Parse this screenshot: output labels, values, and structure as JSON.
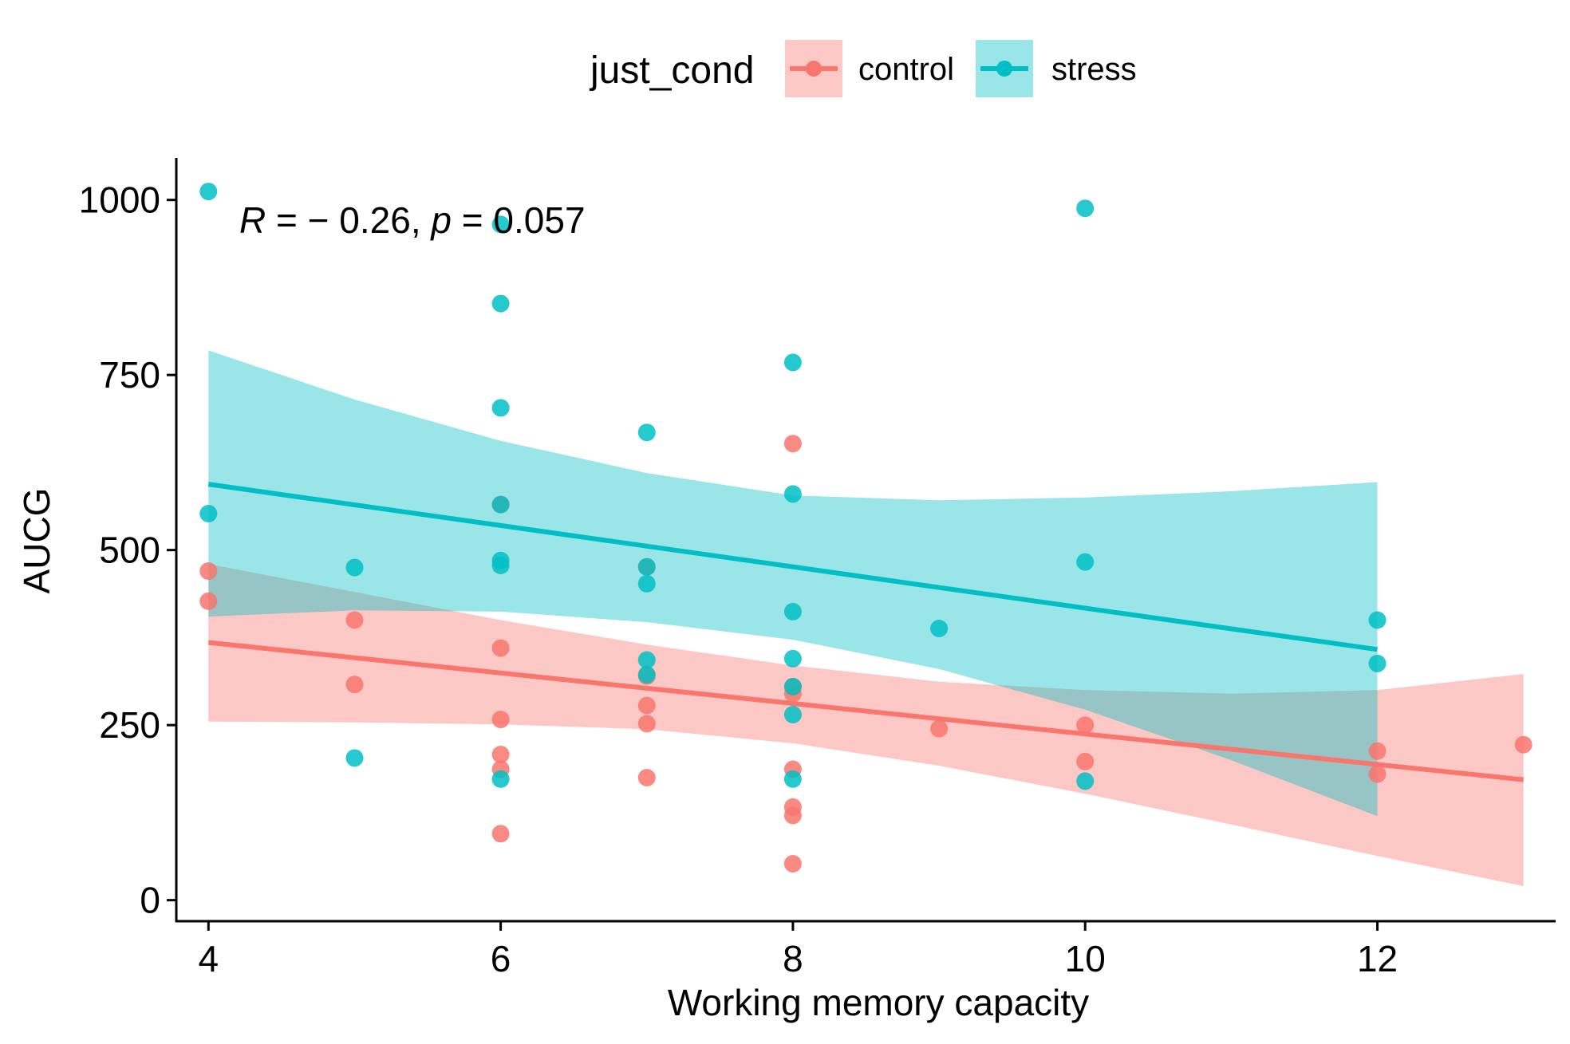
{
  "chart_data": {
    "type": "scatter",
    "xlabel": "Working memory capacity",
    "ylabel": "AUCG",
    "xlim": [
      3.78,
      13.22
    ],
    "ylim": [
      -30,
      1060
    ],
    "x_ticks": [
      4,
      6,
      8,
      10,
      12
    ],
    "y_ticks": [
      0,
      250,
      500,
      750,
      1000
    ],
    "grid": false,
    "legend": {
      "title": "just_cond",
      "position": "top"
    },
    "annotation": {
      "parts": [
        "R",
        " = − 0.26, ",
        "p",
        " = 0.057"
      ]
    },
    "colors": {
      "control": "#F8766D",
      "stress": "#00BFC4"
    },
    "series": [
      {
        "name": "control",
        "points": [
          [
            4,
            470
          ],
          [
            4,
            427
          ],
          [
            5,
            400
          ],
          [
            5,
            308
          ],
          [
            6,
            565
          ],
          [
            6,
            360
          ],
          [
            6,
            258
          ],
          [
            6,
            208
          ],
          [
            6,
            187
          ],
          [
            6,
            95
          ],
          [
            7,
            476
          ],
          [
            7,
            320
          ],
          [
            7,
            278
          ],
          [
            7,
            252
          ],
          [
            7,
            175
          ],
          [
            8,
            652
          ],
          [
            8,
            305
          ],
          [
            8,
            295
          ],
          [
            8,
            187
          ],
          [
            8,
            133
          ],
          [
            8,
            121
          ],
          [
            8,
            52
          ],
          [
            9,
            245
          ],
          [
            10,
            250
          ],
          [
            10,
            198
          ],
          [
            12,
            213
          ],
          [
            12,
            180
          ],
          [
            13,
            222
          ]
        ],
        "fit": {
          "x": [
            4,
            13
          ],
          "y": [
            368,
            172
          ]
        },
        "ci": {
          "x": [
            4,
            5,
            6,
            7,
            8,
            9,
            10,
            11,
            12,
            13
          ],
          "lower": [
            255,
            254,
            251,
            244,
            224,
            192,
            152,
            108,
            63,
            20
          ],
          "upper": [
            480,
            440,
            400,
            365,
            335,
            312,
            300,
            295,
            300,
            323
          ]
        }
      },
      {
        "name": "stress",
        "points": [
          [
            4,
            1012
          ],
          [
            4,
            552
          ],
          [
            5,
            475
          ],
          [
            5,
            203
          ],
          [
            6,
            965
          ],
          [
            6,
            852
          ],
          [
            6,
            703
          ],
          [
            6,
            565
          ],
          [
            6,
            485
          ],
          [
            6,
            478
          ],
          [
            6,
            173
          ],
          [
            7,
            668
          ],
          [
            7,
            476
          ],
          [
            7,
            452
          ],
          [
            7,
            343
          ],
          [
            7,
            322
          ],
          [
            8,
            768
          ],
          [
            8,
            580
          ],
          [
            8,
            412
          ],
          [
            8,
            345
          ],
          [
            8,
            305
          ],
          [
            8,
            265
          ],
          [
            8,
            173
          ],
          [
            9,
            388
          ],
          [
            10,
            988
          ],
          [
            10,
            483
          ],
          [
            10,
            170
          ],
          [
            12,
            400
          ],
          [
            12,
            338
          ]
        ],
        "fit": {
          "x": [
            4,
            12
          ],
          "y": [
            594,
            358
          ]
        },
        "ci": {
          "x": [
            4,
            5,
            6,
            7,
            8,
            9,
            10,
            11,
            12
          ],
          "lower": [
            405,
            414,
            412,
            397,
            372,
            330,
            272,
            200,
            120
          ],
          "upper": [
            785,
            715,
            656,
            610,
            578,
            571,
            575,
            584,
            597
          ]
        }
      }
    ]
  }
}
